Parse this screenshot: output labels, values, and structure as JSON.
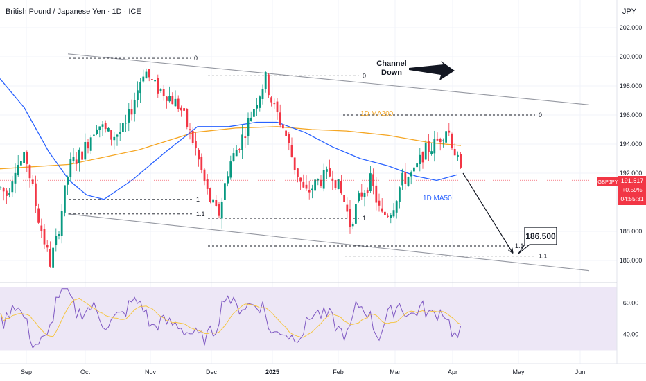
{
  "header": {
    "symbol_title": "British Pound / Japanese Yen · 1D · ICE",
    "currency": "JPY"
  },
  "price_badge": {
    "ticker": "GBPJPY",
    "price": "191.517",
    "change": "+0.59%",
    "countdown": "04:55:31",
    "color": "#f23645"
  },
  "colors": {
    "up": "#089981",
    "down": "#f23645",
    "ma200": "#f5a623",
    "ma50": "#2962ff",
    "rsi": "#7e57c2",
    "rsi_ma": "#f5c542",
    "rsi_band": "#ede7f6"
  },
  "annotations": {
    "channel_label_line1": "Channel",
    "channel_label_line2": "Down",
    "ma200_label": "1D MA200",
    "ma50_label": "1D MA50",
    "target_label": "186.500"
  },
  "fib_labels": {
    "top1": "0",
    "top2": "0",
    "top3": "0",
    "low1_one": "1",
    "low1_ext": "1.1",
    "low2_one": "1",
    "low2_ext": "1.1",
    "low3_ext": "1.1"
  },
  "chart_data": {
    "type": "candlestick",
    "title": "British Pound / Japanese Yen · 1D · ICE",
    "y_axis": {
      "label": "JPY",
      "range": [
        184.8,
        203.2
      ],
      "ticks": [
        "202.000",
        "200.000",
        "198.000",
        "196.000",
        "194.000",
        "192.000",
        "188.000",
        "186.000"
      ]
    },
    "x_axis": {
      "ticks": [
        "Sep",
        "Oct",
        "Nov",
        "Dec",
        "2025",
        "Feb",
        "Mar",
        "Apr",
        "May",
        "Jun"
      ]
    },
    "price_path_anchors": [
      [
        0,
        191.0
      ],
      [
        10,
        190.5
      ],
      [
        22,
        192.5
      ],
      [
        38,
        193.0
      ],
      [
        55,
        189.0
      ],
      [
        72,
        185.8
      ],
      [
        82,
        187.5
      ],
      [
        100,
        192.5
      ],
      [
        120,
        193.5
      ],
      [
        140,
        195.5
      ],
      [
        160,
        194.5
      ],
      [
        180,
        195.0
      ],
      [
        208,
        199.2
      ],
      [
        222,
        198.0
      ],
      [
        240,
        197.5
      ],
      [
        260,
        196.5
      ],
      [
        280,
        194.0
      ],
      [
        300,
        190.5
      ],
      [
        315,
        189.0
      ],
      [
        330,
        192.5
      ],
      [
        350,
        194.5
      ],
      [
        370,
        197.0
      ],
      [
        383,
        198.5
      ],
      [
        395,
        196.5
      ],
      [
        410,
        195.0
      ],
      [
        425,
        192.5
      ],
      [
        440,
        190.5
      ],
      [
        460,
        191.5
      ],
      [
        480,
        192.0
      ],
      [
        497,
        190.0
      ],
      [
        505,
        188.5
      ],
      [
        520,
        190.5
      ],
      [
        535,
        191.5
      ],
      [
        550,
        189.0
      ],
      [
        565,
        189.5
      ],
      [
        580,
        191.5
      ],
      [
        598,
        192.0
      ],
      [
        612,
        193.5
      ],
      [
        628,
        194.0
      ],
      [
        645,
        195.2
      ],
      [
        658,
        193.2
      ],
      [
        665,
        191.9
      ]
    ],
    "series": [
      {
        "name": "1D MA200",
        "points": [
          [
            0,
            192.3
          ],
          [
            100,
            192.6
          ],
          [
            200,
            193.6
          ],
          [
            280,
            194.8
          ],
          [
            340,
            195.1
          ],
          [
            400,
            195.2
          ],
          [
            450,
            195.0
          ],
          [
            500,
            194.9
          ],
          [
            560,
            194.6
          ],
          [
            620,
            194.1
          ],
          [
            665,
            193.9
          ]
        ]
      },
      {
        "name": "1D MA50",
        "points": [
          [
            0,
            198.5
          ],
          [
            35,
            196.5
          ],
          [
            70,
            193.5
          ],
          [
            100,
            191.5
          ],
          [
            125,
            190.5
          ],
          [
            150,
            190.2
          ],
          [
            190,
            191.5
          ],
          [
            240,
            193.5
          ],
          [
            285,
            195.2
          ],
          [
            330,
            195.2
          ],
          [
            370,
            195.5
          ],
          [
            400,
            195.5
          ],
          [
            440,
            194.8
          ],
          [
            480,
            193.8
          ],
          [
            520,
            193.0
          ],
          [
            560,
            192.5
          ],
          [
            600,
            191.8
          ],
          [
            630,
            191.5
          ],
          [
            660,
            191.9
          ]
        ]
      }
    ],
    "channel_lines": [
      {
        "from": [
          98,
          200.2
        ],
        "to": [
          850,
          196.7
        ]
      },
      {
        "from": [
          98,
          189.2
        ],
        "to": [
          850,
          185.3
        ]
      }
    ],
    "fib_levels": [
      {
        "label": "0",
        "x1": 100,
        "x2": 275,
        "value": 199.9
      },
      {
        "label": "0",
        "x1": 300,
        "x2": 518,
        "value": 198.7
      },
      {
        "label": "0",
        "x1": 495,
        "x2": 772,
        "value": 196.0
      },
      {
        "label": "1",
        "x1": 100,
        "x2": 278,
        "value": 190.2
      },
      {
        "label": "1.1",
        "x1": 100,
        "x2": 278,
        "value": 189.2
      },
      {
        "label": "1",
        "x1": 300,
        "x2": 518,
        "value": 188.9
      },
      {
        "label": "1.1",
        "x1": 300,
        "x2": 738,
        "value": 187.0
      },
      {
        "label": "1.1",
        "x1": 498,
        "x2": 772,
        "value": 186.3
      }
    ],
    "projection": {
      "from": [
        668,
        192.0
      ],
      "to": [
        740,
        186.5
      ],
      "target": 186.5
    },
    "rsi": {
      "range": [
        28,
        72
      ],
      "ticks": [
        "60.00",
        "40.00"
      ],
      "band": [
        30,
        70
      ]
    }
  }
}
